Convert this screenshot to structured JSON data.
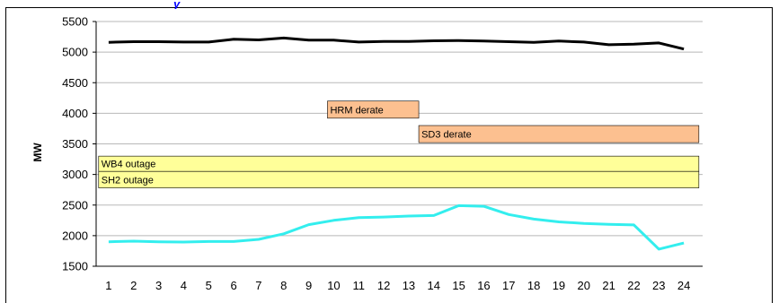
{
  "chart_data": {
    "type": "line",
    "title": "",
    "xlabel": "",
    "ylabel": "MW",
    "ylim": [
      1500,
      5500
    ],
    "yticks": [
      1500,
      2000,
      2500,
      3000,
      3500,
      4000,
      4500,
      5000,
      5500
    ],
    "x": [
      1,
      2,
      3,
      4,
      5,
      6,
      7,
      8,
      9,
      10,
      11,
      12,
      13,
      14,
      15,
      16,
      17,
      18,
      19,
      20,
      21,
      22,
      23,
      24
    ],
    "grid": true,
    "series": [
      {
        "color": "#000000",
        "values": [
          5160,
          5170,
          5170,
          5165,
          5165,
          5210,
          5200,
          5230,
          5195,
          5195,
          5165,
          5175,
          5175,
          5185,
          5190,
          5180,
          5170,
          5160,
          5180,
          5165,
          5120,
          5130,
          5150,
          5050
        ]
      },
      {
        "color": "#33eeee",
        "values": [
          1900,
          1910,
          1900,
          1895,
          1905,
          1905,
          1940,
          2030,
          2180,
          2250,
          2295,
          2305,
          2320,
          2330,
          2490,
          2480,
          2345,
          2270,
          2225,
          2200,
          2185,
          2175,
          1780,
          1880
        ]
      }
    ],
    "annotations": [
      {
        "label": "HRM derate",
        "x_start": 9.75,
        "x_end": 13.4,
        "y_low": 3920,
        "y_high": 4200,
        "fill": "#fcc090"
      },
      {
        "label": "SD3 derate",
        "x_start": 13.4,
        "x_end": 24.6,
        "y_low": 3520,
        "y_high": 3800,
        "fill": "#fcc090"
      },
      {
        "label": "WB4 outage",
        "x_start": 0.6,
        "x_end": 24.6,
        "y_low": 3050,
        "y_high": 3300,
        "fill": "#ffff99"
      },
      {
        "label": "SH2 outage",
        "x_start": 0.6,
        "x_end": 24.6,
        "y_low": 2780,
        "y_high": 3050,
        "fill": "#ffff99"
      }
    ]
  }
}
